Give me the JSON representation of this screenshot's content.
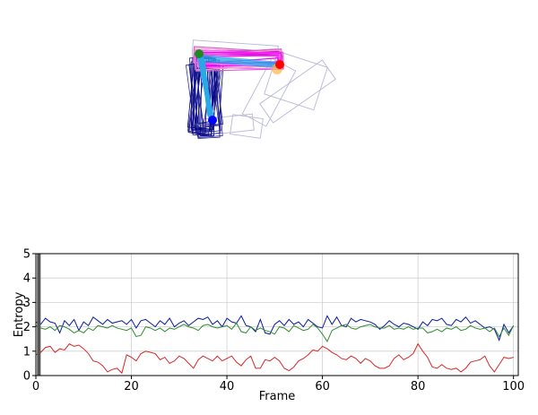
{
  "chart_data": [
    {
      "type": "diagram",
      "description": "overlaid rotated rectangles (pose traces) with joint markers",
      "colors": {
        "upper_limb_palette": [
          "#ff00ff",
          "#cc00cc",
          "#ff66ff",
          "#ff99cc",
          "#cc66cc"
        ],
        "lower_limb_palette": [
          "#000080",
          "#1a1a8c",
          "#00008b",
          "#303090",
          "#2a2aa0"
        ],
        "inner_limb": "#29a9e8",
        "ghost_outline": "#b8b8d8",
        "joint_start": "#1e8a1e",
        "joint_end": "#ff0000",
        "joint_bottom": "#0000ff",
        "joint_glow": "#ffb347"
      }
    },
    {
      "type": "line",
      "title": "",
      "xlabel": "Frame",
      "ylabel": "Entropy",
      "xlim": [
        0,
        101
      ],
      "ylim": [
        0,
        5
      ],
      "xticks": [
        0,
        20,
        40,
        60,
        80,
        100
      ],
      "yticks": [
        0,
        1,
        2,
        3,
        4,
        5
      ],
      "grid": true,
      "current_frame": 1,
      "series": [
        {
          "color": "#0a1a9c",
          "values": [
            2.2,
            2.1,
            2.35,
            2.2,
            2.15,
            1.75,
            2.25,
            2.05,
            2.3,
            1.85,
            2.2,
            2.05,
            2.4,
            2.25,
            2.1,
            2.3,
            2.15,
            2.2,
            2.25,
            2.1,
            2.3,
            1.95,
            2.25,
            2.3,
            2.15,
            2.0,
            2.25,
            2.1,
            2.35,
            2.0,
            2.15,
            2.25,
            2.05,
            2.2,
            2.35,
            2.3,
            2.4,
            2.1,
            2.25,
            2.0,
            2.35,
            2.2,
            2.15,
            2.45,
            2.05,
            2.0,
            1.8,
            2.3,
            1.75,
            1.7,
            2.1,
            2.25,
            2.05,
            2.3,
            2.1,
            2.2,
            2.0,
            2.3,
            2.15,
            2.0,
            1.95,
            2.45,
            2.1,
            2.4,
            2.05,
            2.0,
            2.35,
            2.2,
            2.3,
            2.25,
            2.2,
            2.1,
            1.9,
            2.05,
            2.25,
            2.1,
            2.0,
            2.15,
            2.1,
            2.0,
            1.9,
            2.2,
            2.05,
            2.3,
            2.25,
            2.35,
            2.1,
            2.05,
            2.3,
            2.2,
            2.4,
            2.15,
            2.25,
            2.1,
            1.95,
            2.0,
            1.9,
            1.45,
            2.1,
            1.75,
            2.05
          ]
        },
        {
          "color": "#2e8b2e",
          "values": [
            2.05,
            1.95,
            1.9,
            2.0,
            1.85,
            2.05,
            2.0,
            1.9,
            1.75,
            1.85,
            1.75,
            1.95,
            1.85,
            2.05,
            2.0,
            1.95,
            2.05,
            1.95,
            1.9,
            1.85,
            1.95,
            1.6,
            1.65,
            2.0,
            1.95,
            1.85,
            1.95,
            1.8,
            1.95,
            1.9,
            2.0,
            2.1,
            2.0,
            1.95,
            1.85,
            2.05,
            2.1,
            2.0,
            1.95,
            2.0,
            2.05,
            1.9,
            2.15,
            1.8,
            1.75,
            2.0,
            1.85,
            1.95,
            1.85,
            1.8,
            1.7,
            2.0,
            1.95,
            1.8,
            2.05,
            1.95,
            1.85,
            1.9,
            2.1,
            1.95,
            1.7,
            1.4,
            1.85,
            1.95,
            2.05,
            2.1,
            1.95,
            1.9,
            2.0,
            2.05,
            2.1,
            2.0,
            1.95,
            1.95,
            2.05,
            1.9,
            1.95,
            1.9,
            2.0,
            1.9,
            1.95,
            1.95,
            1.75,
            1.8,
            1.9,
            1.8,
            1.95,
            1.9,
            2.0,
            1.85,
            1.9,
            2.05,
            1.95,
            1.9,
            1.95,
            1.8,
            1.95,
            1.6,
            1.95,
            1.65,
            2.05
          ]
        },
        {
          "color": "#d62728",
          "values": [
            0.85,
            0.95,
            1.15,
            1.2,
            0.95,
            1.1,
            1.05,
            1.3,
            1.2,
            1.25,
            1.1,
            0.9,
            0.6,
            0.55,
            0.4,
            0.15,
            0.25,
            0.3,
            0.1,
            0.85,
            0.75,
            0.6,
            0.9,
            1.0,
            0.95,
            0.9,
            0.65,
            0.75,
            0.5,
            0.6,
            0.8,
            0.7,
            0.5,
            0.3,
            0.65,
            0.8,
            0.7,
            0.6,
            0.8,
            0.6,
            0.7,
            0.8,
            0.55,
            0.4,
            0.65,
            0.8,
            0.3,
            0.3,
            0.65,
            0.6,
            0.75,
            0.6,
            0.3,
            0.2,
            0.35,
            0.6,
            0.7,
            0.85,
            1.05,
            1.0,
            1.2,
            1.1,
            0.95,
            0.85,
            0.7,
            0.65,
            0.8,
            0.7,
            0.5,
            0.7,
            0.6,
            0.4,
            0.3,
            0.3,
            0.4,
            0.7,
            0.85,
            0.65,
            0.75,
            0.9,
            1.3,
            1.0,
            0.75,
            0.35,
            0.3,
            0.45,
            0.3,
            0.25,
            0.3,
            0.15,
            0.3,
            0.55,
            0.6,
            0.65,
            0.8,
            0.4,
            0.15,
            0.45,
            0.75,
            0.7,
            0.75
          ]
        }
      ]
    }
  ]
}
